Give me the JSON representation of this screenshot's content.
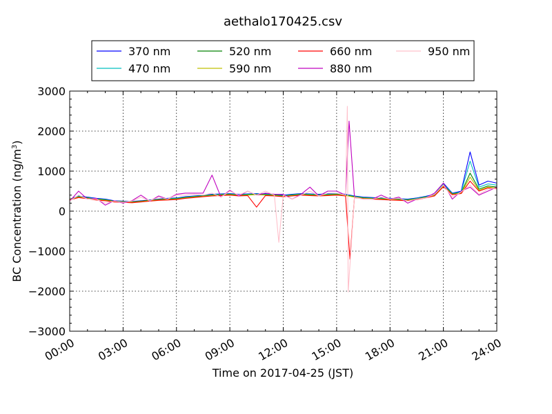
{
  "chart_data": {
    "type": "line",
    "title": "aethalo170425.csv",
    "xlabel": "Time on 2017-04-25 (JST)",
    "ylabel": "BC Concentration (ng/m",
    "ylabel_superscript": "3",
    "ylabel_close": ")",
    "xlim": [
      "00:00",
      "24:00"
    ],
    "ylim": [
      -3000,
      3000
    ],
    "x_ticks": [
      "00:00",
      "03:00",
      "06:00",
      "09:00",
      "12:00",
      "15:00",
      "18:00",
      "21:00",
      "24:00"
    ],
    "y_ticks": [
      "3000",
      "2000",
      "1000",
      "0",
      "−1000",
      "−2000",
      "−3000"
    ],
    "grid": true,
    "legend_position": "top",
    "series": [
      {
        "name": "370 nm",
        "color": "#0000ff"
      },
      {
        "name": "470 nm",
        "color": "#00bfbf"
      },
      {
        "name": "520 nm",
        "color": "#008000"
      },
      {
        "name": "590 nm",
        "color": "#bfbf00"
      },
      {
        "name": "660 nm",
        "color": "#ff0000"
      },
      {
        "name": "880 nm",
        "color": "#bf00bf"
      },
      {
        "name": "950 nm",
        "color": "#ffc0cb"
      }
    ],
    "x_hours": [
      0,
      0.5,
      1,
      1.5,
      2,
      2.5,
      3,
      3.5,
      4,
      4.5,
      5,
      5.5,
      6,
      6.5,
      7,
      7.5,
      8,
      8.5,
      9,
      9.5,
      10,
      10.5,
      11,
      11.5,
      12,
      12.5,
      13,
      13.5,
      14,
      14.5,
      15,
      15.5,
      16,
      16.5,
      17,
      17.5,
      18,
      18.5,
      19,
      19.5,
      20,
      20.5,
      21,
      21.5,
      22,
      22.5,
      23,
      23.5,
      24
    ],
    "values": {
      "370 nm": [
        300,
        380,
        350,
        320,
        300,
        260,
        250,
        240,
        260,
        280,
        300,
        320,
        330,
        360,
        380,
        400,
        420,
        430,
        440,
        420,
        430,
        440,
        430,
        420,
        400,
        420,
        440,
        430,
        420,
        430,
        440,
        420,
        380,
        350,
        340,
        330,
        320,
        310,
        300,
        330,
        370,
        420,
        700,
        450,
        500,
        1480,
        650,
        750,
        700
      ],
      "470 nm": [
        300,
        370,
        340,
        310,
        290,
        250,
        240,
        230,
        250,
        270,
        290,
        310,
        320,
        350,
        370,
        390,
        410,
        420,
        430,
        410,
        420,
        430,
        420,
        410,
        390,
        410,
        430,
        420,
        410,
        420,
        430,
        410,
        370,
        340,
        330,
        320,
        310,
        300,
        290,
        320,
        360,
        410,
        680,
        440,
        480,
        1250,
        600,
        680,
        650
      ],
      "520 nm": [
        300,
        360,
        330,
        300,
        280,
        250,
        240,
        230,
        250,
        270,
        290,
        300,
        310,
        340,
        360,
        380,
        400,
        410,
        420,
        400,
        410,
        420,
        410,
        400,
        380,
        400,
        420,
        410,
        400,
        410,
        420,
        400,
        360,
        330,
        320,
        310,
        300,
        290,
        280,
        310,
        350,
        400,
        650,
        430,
        460,
        950,
        550,
        630,
        600
      ],
      "590 nm": [
        290,
        350,
        320,
        290,
        270,
        240,
        230,
        220,
        240,
        260,
        280,
        290,
        300,
        330,
        350,
        370,
        390,
        400,
        410,
        390,
        400,
        410,
        400,
        390,
        370,
        390,
        410,
        400,
        390,
        400,
        410,
        390,
        350,
        320,
        310,
        300,
        290,
        280,
        270,
        300,
        340,
        390,
        630,
        420,
        450,
        850,
        520,
        600,
        580
      ],
      "660 nm": [
        280,
        340,
        310,
        280,
        260,
        230,
        220,
        210,
        230,
        250,
        270,
        280,
        290,
        320,
        340,
        360,
        380,
        390,
        400,
        380,
        390,
        100,
        390,
        380,
        360,
        380,
        400,
        390,
        380,
        390,
        400,
        380,
        340,
        310,
        300,
        290,
        280,
        270,
        260,
        290,
        330,
        380,
        610,
        410,
        440,
        750,
        500,
        580,
        560
      ],
      "880 nm": [
        250,
        500,
        300,
        320,
        150,
        260,
        200,
        260,
        400,
        250,
        380,
        300,
        420,
        450,
        450,
        450,
        900,
        350,
        520,
        380,
        500,
        400,
        450,
        420,
        420,
        300,
        420,
        600,
        380,
        500,
        500,
        400,
        350,
        300,
        300,
        400,
        300,
        350,
        200,
        300,
        330,
        450,
        700,
        300,
        500,
        600,
        400,
        500,
        600
      ],
      "950 nm": [
        250,
        400,
        300,
        300,
        200,
        250,
        220,
        250,
        350,
        260,
        350,
        300,
        400,
        400,
        420,
        400,
        450,
        350,
        500,
        400,
        500,
        400,
        500,
        400,
        400,
        300,
        400,
        500,
        380,
        450,
        450,
        400,
        350,
        300,
        300,
        350,
        300,
        320,
        250,
        300,
        330,
        420,
        650,
        350,
        480,
        650,
        420,
        550,
        580
      ]
    },
    "spikes": [
      {
        "series": "950 nm",
        "hour": 11.75,
        "value": -780
      },
      {
        "series": "950 nm",
        "hour": 15.6,
        "value": 2620
      },
      {
        "series": "950 nm",
        "hour": 15.65,
        "value": -2020
      },
      {
        "series": "880 nm",
        "hour": 15.7,
        "value": 2250
      },
      {
        "series": "660 nm",
        "hour": 15.75,
        "value": -1200
      }
    ]
  }
}
